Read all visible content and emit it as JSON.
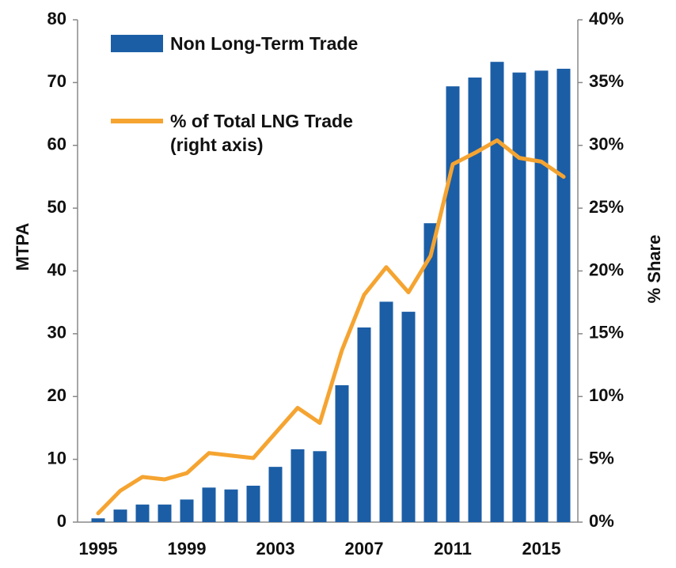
{
  "chart_data": {
    "type": "bar",
    "categories": [
      "1995",
      null,
      null,
      null,
      "1999",
      null,
      null,
      null,
      "2003",
      null,
      null,
      null,
      "2007",
      null,
      null,
      null,
      "2011",
      null,
      null,
      null,
      "2015",
      null
    ],
    "series": [
      {
        "name": "Non Long-Term Trade",
        "type": "bar",
        "color": "#1b5ea6",
        "values": [
          0.6,
          2.0,
          2.8,
          2.8,
          3.6,
          5.5,
          5.2,
          5.8,
          8.8,
          11.6,
          11.3,
          21.8,
          31,
          35.1,
          33.5,
          47.6,
          69.4,
          70.8,
          73.3,
          71.6,
          71.9,
          72.2
        ]
      },
      {
        "name": "% of Total LNG Trade (right axis)",
        "type": "line",
        "axis": "y2",
        "color": "#f5a431",
        "values": [
          0.7,
          2.5,
          3.6,
          3.4,
          3.9,
          5.5,
          5.3,
          5.1,
          7.1,
          9.1,
          7.9,
          13.7,
          18.1,
          20.3,
          18.3,
          21.2,
          28.5,
          29.4,
          30.4,
          29,
          28.7,
          27.5
        ]
      }
    ],
    "ylabel": "MTPA",
    "y2label": "% Share",
    "ylim": [
      0,
      80
    ],
    "yticks": [
      0,
      10,
      20,
      30,
      40,
      50,
      60,
      70,
      80
    ],
    "y2lim": [
      0,
      40
    ],
    "y2ticks": [
      {
        "value": 0,
        "label": "0%"
      },
      {
        "value": 5,
        "label": "5%"
      },
      {
        "value": 10,
        "label": "10%"
      },
      {
        "value": 15,
        "label": "15%"
      },
      {
        "value": 20,
        "label": "20%"
      },
      {
        "value": 25,
        "label": "25%"
      },
      {
        "value": 30,
        "label": "30%"
      },
      {
        "value": 35,
        "label": "35%"
      },
      {
        "value": 40,
        "label": "40%"
      }
    ],
    "grid": false,
    "legend": "top-left"
  }
}
